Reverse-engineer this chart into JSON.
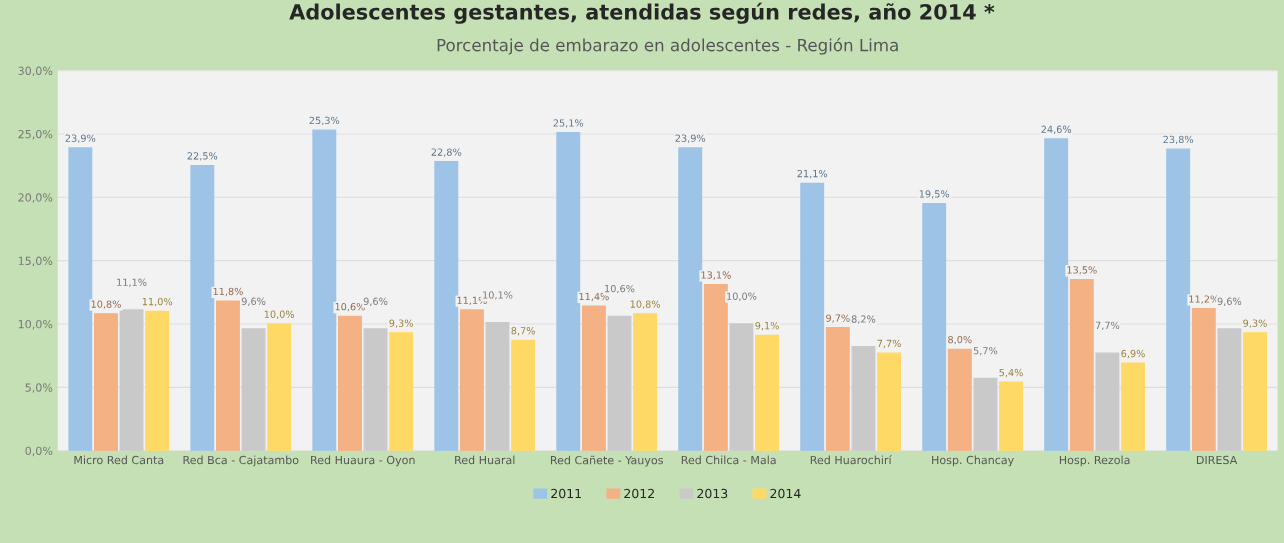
{
  "chart_data": {
    "type": "bar",
    "title": "Adolescentes gestantes, atendidas según redes, año 2014 *",
    "subtitle": "Porcentaje de embarazo en adolescentes - Región Lima",
    "categories": [
      "Micro Red Canta",
      "Red Bca - Cajatambo",
      "Red Huaura - Oyon",
      "Red Huaral",
      "Red Cañete - Yauyos",
      "Red Chilca - Mala",
      "Red Huarochirí",
      "Hosp. Chancay",
      "Hosp. Rezola",
      "DIRESA"
    ],
    "series": [
      {
        "name": "2011",
        "color": "#9dc3e6",
        "values": [
          23.9,
          22.5,
          25.3,
          22.8,
          25.1,
          23.9,
          21.1,
          19.5,
          24.6,
          23.8
        ],
        "value_labels": [
          "23,9%",
          "22,5%",
          "25,3%",
          "22,8%",
          "25,1%",
          "23,9%",
          "21,1%",
          "19,5%",
          "24,6%",
          "23,8%"
        ]
      },
      {
        "name": "2012",
        "color": "#f4b183",
        "values": [
          10.8,
          11.8,
          10.6,
          11.1,
          11.4,
          13.1,
          9.7,
          8.0,
          13.5,
          11.2
        ],
        "value_labels": [
          "10,8%",
          "11,8%",
          "10,6%",
          "11,1%",
          "11,4%",
          "13,1%",
          "9,7%",
          "8,0%",
          "13,5%",
          "11,2%"
        ]
      },
      {
        "name": "2013",
        "color": "#c9c9c9",
        "values": [
          11.1,
          9.6,
          9.6,
          10.1,
          10.6,
          10.0,
          8.2,
          5.7,
          7.7,
          9.6
        ],
        "value_labels": [
          "11,1%",
          "9,6%",
          "9,6%",
          "10,1%",
          "10,6%",
          "10,0%",
          "8,2%",
          "5,7%",
          "7,7%",
          "9,6%"
        ]
      },
      {
        "name": "2014",
        "color": "#ffd966",
        "values": [
          11.0,
          10.0,
          9.3,
          8.7,
          10.8,
          9.1,
          7.7,
          5.4,
          6.9,
          9.3
        ],
        "value_labels": [
          "11,0%",
          "10,0%",
          "9,3%",
          "8,7%",
          "10,8%",
          "9,1%",
          "7,7%",
          "5,4%",
          "6,9%",
          "9,3%"
        ]
      }
    ],
    "ylim": [
      0,
      30
    ],
    "yticks": [
      {
        "value": 0,
        "label": "0,0%"
      },
      {
        "value": 5,
        "label": "5,0%"
      },
      {
        "value": 10,
        "label": "10,0%"
      },
      {
        "value": 15,
        "label": "15,0%"
      },
      {
        "value": 20,
        "label": "20,0%"
      },
      {
        "value": 25,
        "label": "25,0%"
      },
      {
        "value": 30,
        "label": "30,0%"
      }
    ],
    "grid": "y",
    "legend": "bottom"
  }
}
